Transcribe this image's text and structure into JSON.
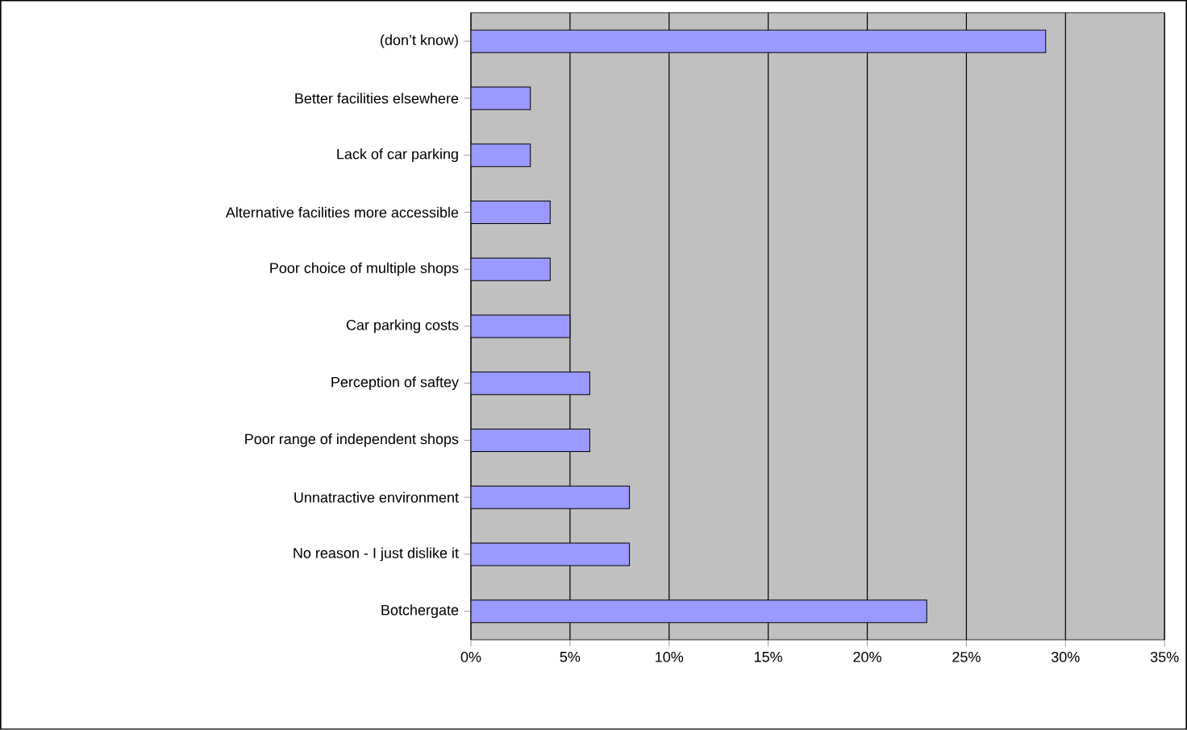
{
  "chart_data": {
    "type": "bar",
    "orientation": "horizontal",
    "categories": [
      "(don’t know)",
      "Better facilities elsewhere",
      "Lack of car parking",
      "Alternative facilities more accessible",
      "Poor choice of multiple shops",
      "Car parking costs",
      "Perception of saftey",
      "Poor range of independent shops",
      "Unnatractive environment",
      "No reason - I just dislike it",
      "Botchergate"
    ],
    "values": [
      29,
      3,
      3,
      4,
      4,
      5,
      6,
      6,
      8,
      8,
      23
    ],
    "color": "#9999ff",
    "xlim": [
      0,
      35
    ],
    "xticks": [
      {
        "value": 0,
        "label": "0%"
      },
      {
        "value": 5,
        "label": "5%"
      },
      {
        "value": 10,
        "label": "10%"
      },
      {
        "value": 15,
        "label": "15%"
      },
      {
        "value": 20,
        "label": "20%"
      },
      {
        "value": 25,
        "label": "25%"
      },
      {
        "value": 30,
        "label": "30%"
      },
      {
        "value": 35,
        "label": "35%"
      }
    ],
    "grid": "x"
  }
}
